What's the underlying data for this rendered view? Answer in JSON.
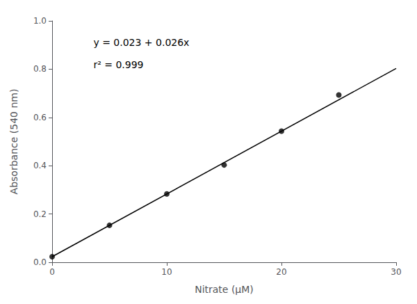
{
  "chart_data": {
    "type": "scatter",
    "xlabel": "Nitrate (μM)",
    "ylabel": "Absorbance (540 nm)",
    "annotations": [
      "y = 0.023 + 0.026x",
      "r² = 0.999"
    ],
    "series": [
      {
        "type": "scatter",
        "marker": "circle",
        "color": "#000000",
        "x": [
          0,
          5,
          10,
          15,
          20,
          25
        ],
        "values": [
          0.023,
          0.153,
          0.283,
          0.403,
          0.543,
          0.693
        ]
      },
      {
        "type": "line",
        "line_style": "solid",
        "color": "#000000",
        "x": [
          0,
          30
        ],
        "values": [
          0.023,
          0.803
        ]
      }
    ],
    "xlim": [
      0,
      30
    ],
    "xticks": [
      0,
      10,
      20,
      30
    ],
    "ylim": [
      0,
      1.0
    ],
    "yticks": [
      {
        "value": 0,
        "label": "0.0"
      },
      0.2,
      0.4,
      0.6,
      0.8,
      {
        "value": 1.0,
        "label": "1.0"
      }
    ],
    "grid": false
  }
}
